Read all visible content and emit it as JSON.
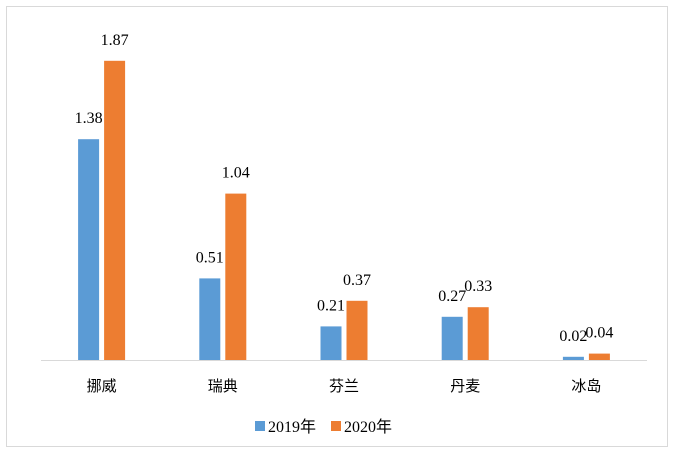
{
  "chart_data": {
    "type": "bar",
    "categories": [
      "挪威",
      "瑞典",
      "芬兰",
      "丹麦",
      "冰岛"
    ],
    "series": [
      {
        "name": "2019年",
        "values": [
          1.38,
          0.51,
          0.21,
          0.27,
          0.02
        ],
        "labels": [
          "1.38",
          "0.51",
          "0.21",
          "0.27",
          "0.02"
        ],
        "color": "#5b9bd5"
      },
      {
        "name": "2020年",
        "values": [
          1.87,
          1.04,
          0.37,
          0.33,
          0.04
        ],
        "labels": [
          "1.87",
          "1.04",
          "0.37",
          "0.33",
          "0.04"
        ],
        "color": "#ed7d31"
      }
    ],
    "ylim": [
      0,
      2
    ],
    "grid": false,
    "legend_position": "bottom",
    "axis_color": "#d9d9d9"
  }
}
